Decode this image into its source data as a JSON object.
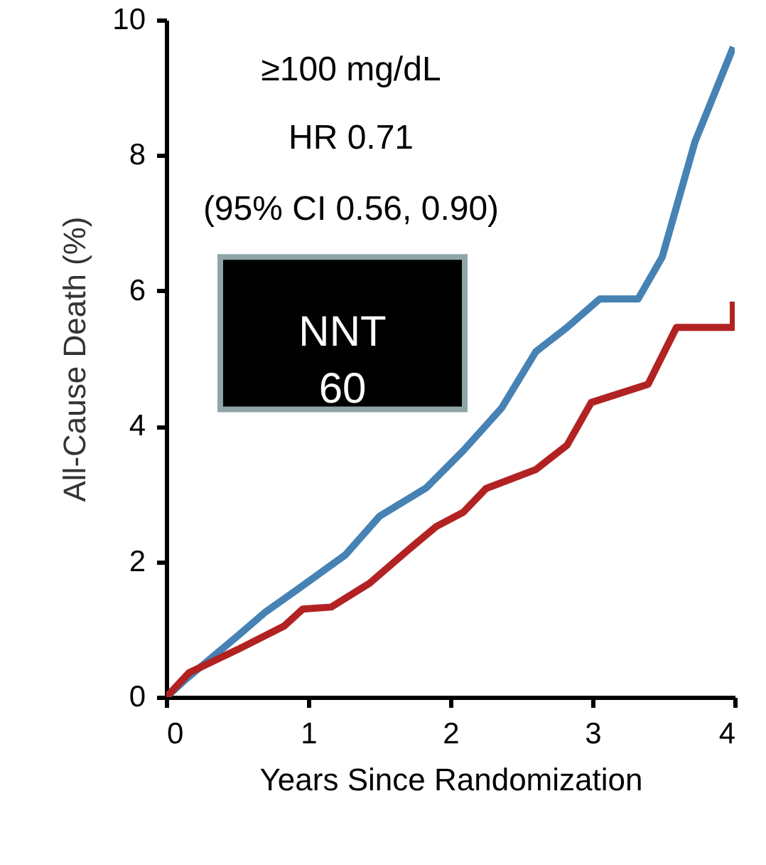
{
  "chart_data": {
    "type": "line",
    "xlabel": "Years Since Randomization",
    "ylabel": "All-Cause Death (%)",
    "xlim": [
      0,
      4
    ],
    "xticks": [
      0,
      1,
      2,
      3,
      4
    ],
    "ylim": [
      0,
      10
    ],
    "yticks": [
      0,
      2,
      4,
      6,
      8,
      10
    ],
    "grid": false,
    "marker": "none",
    "line_style": "solid",
    "annotations": [
      "≥100 mg/dL",
      "HR 0.71",
      "(95% CI 0.56, 0.90)",
      "NNT 60"
    ],
    "series": [
      {
        "color": "#4682b4",
        "x": [
          0,
          0.13,
          0.5,
          0.7,
          0.93,
          1.26,
          1.5,
          1.83,
          2.09,
          2.36,
          2.6,
          2.82,
          3.05,
          3.32,
          3.49,
          3.72,
          3.99
        ],
        "values": [
          0,
          0.25,
          0.9,
          1.26,
          1.6,
          2.1,
          2.67,
          3.09,
          3.64,
          4.27,
          5.1,
          5.46,
          5.88,
          5.88,
          6.5,
          8.2,
          9.6
        ]
      },
      {
        "color": "#b22222",
        "x": [
          0,
          0.16,
          0.5,
          0.83,
          0.96,
          1.16,
          1.43,
          1.7,
          1.9,
          2.09,
          2.25,
          2.6,
          2.82,
          2.99,
          3.39,
          3.49,
          3.59,
          3.99,
          3.99
        ],
        "values": [
          0,
          0.36,
          0.7,
          1.05,
          1.3,
          1.33,
          1.68,
          2.17,
          2.52,
          2.73,
          3.08,
          3.36,
          3.72,
          4.35,
          4.62,
          5.04,
          5.46,
          5.46,
          5.84
        ]
      }
    ]
  }
}
